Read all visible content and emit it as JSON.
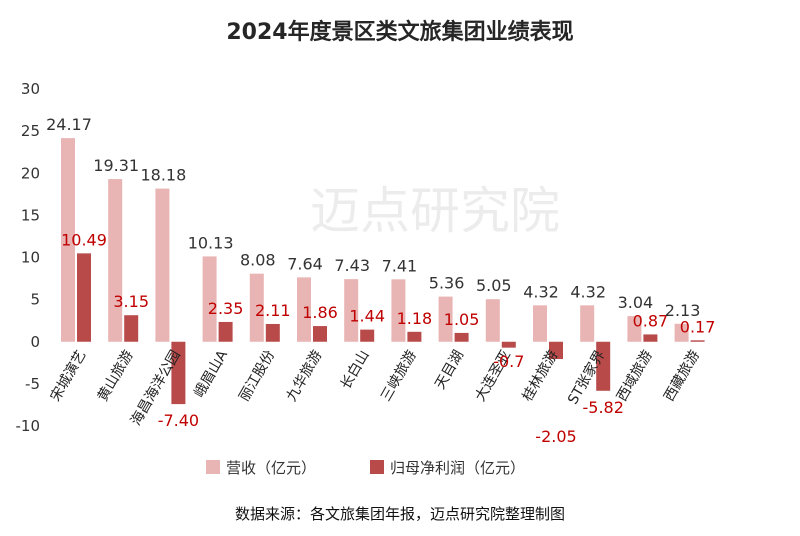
{
  "title": "2024年度景区类文旅集团业绩表现",
  "source": "数据来源：各文旅集团年报，迈点研究院整理制图",
  "watermark": "迈点研究院",
  "colors": {
    "revenue": "#e8b4b4",
    "net_profit": "#b84a4a",
    "net_profit_label": "#c00000"
  },
  "chart_data": {
    "type": "bar",
    "title": "2024年度景区类文旅集团业绩表现",
    "categories": [
      "宋城演艺",
      "黄山旅游",
      "海昌海洋公园",
      "峨眉山A",
      "丽江股份",
      "九华旅游",
      "长白山",
      "三峡旅游",
      "天目湖",
      "大连圣亚",
      "桂林旅游",
      "ST张家界",
      "西域旅游",
      "西藏旅游"
    ],
    "series": [
      {
        "name": "营收（亿元）",
        "values": [
          24.17,
          19.31,
          18.18,
          10.13,
          8.08,
          7.64,
          7.43,
          7.41,
          5.36,
          5.05,
          4.32,
          4.32,
          3.04,
          2.13
        ],
        "labels": [
          "24.17",
          "19.31",
          "18.18",
          "10.13",
          "8.08",
          "7.64",
          "7.43",
          "7.41",
          "5.36",
          "5.05",
          "4.32",
          "4.32",
          "3.04",
          "2.13"
        ]
      },
      {
        "name": "归母净利润（亿元）",
        "values": [
          10.49,
          3.15,
          -7.4,
          2.35,
          2.11,
          1.86,
          1.44,
          1.18,
          1.05,
          -0.7,
          -2.05,
          -5.82,
          0.87,
          0.17
        ],
        "labels": [
          "10.49",
          "3.15",
          "-7.40",
          "2.35",
          "2.11",
          "1.86",
          "1.44",
          "1.18",
          "1.05",
          "-0.7",
          "-2.05",
          "-5.82",
          "0.87",
          "0.17"
        ]
      }
    ],
    "yticks": [
      "30",
      "25",
      "20",
      "15",
      "10",
      "5",
      "0",
      "-5",
      "-10"
    ],
    "ylim": [
      -10,
      30
    ],
    "grid": false,
    "legend": "bottom"
  }
}
